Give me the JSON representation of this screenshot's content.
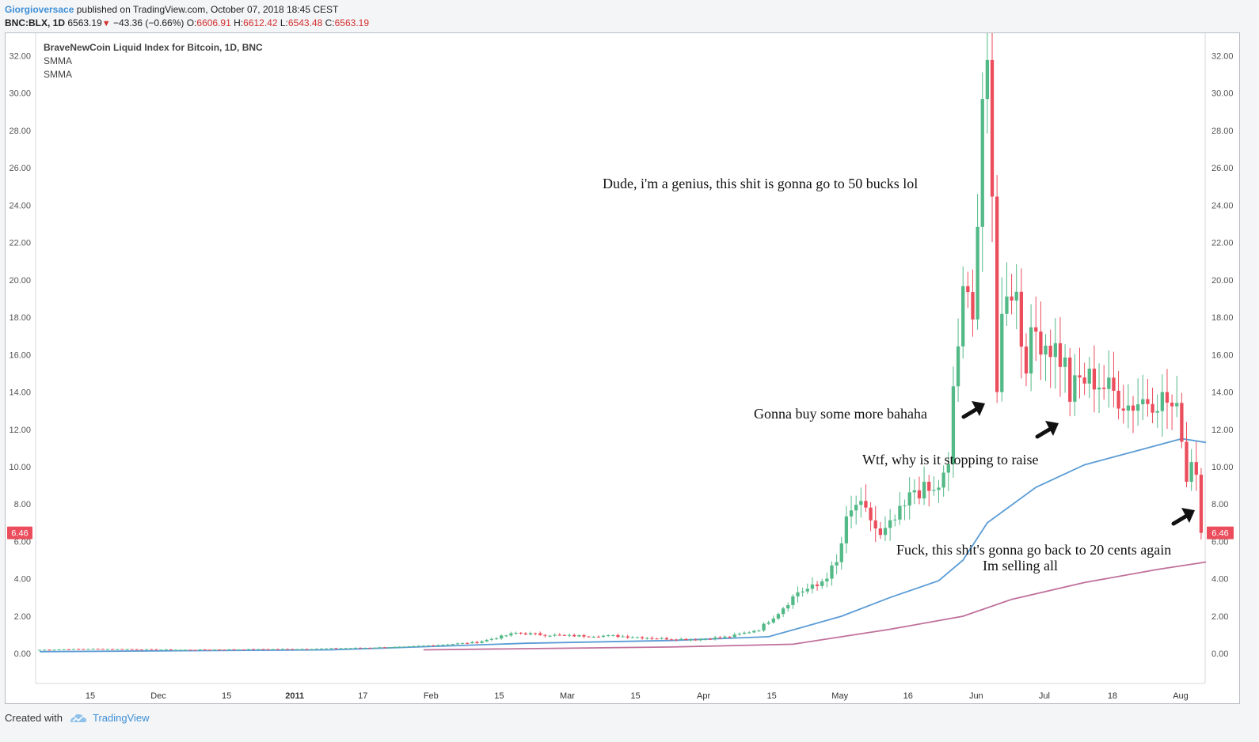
{
  "header": {
    "author": "Giorgioversace",
    "published": "published on TradingView.com, October 07, 2018 18:45 CEST",
    "symbol": "BNC:BLX, 1D",
    "last": "6563.19",
    "change": "−43.36 (−0.66%)",
    "o_label": "O:",
    "o_value": "6606.91",
    "h_label": "H:",
    "h_value": "6612.42",
    "l_label": "L:",
    "l_value": "6543.48",
    "c_label": "C:",
    "c_value": "6563.19"
  },
  "legend": {
    "title": "BraveNewCoin Liquid Index for Bitcoin, 1D, BNC",
    "ind1": "SMMA",
    "ind2": "SMMA"
  },
  "footer": {
    "created": "Created with",
    "brand": "TradingView"
  },
  "colors": {
    "up": "#53b987",
    "down": "#eb4d5c",
    "smma_fast": "#5b9cd6",
    "smma_slow": "#c0709b",
    "price_tag": "#eb4d5c"
  },
  "chart_data": {
    "type": "candlestick",
    "title": "BraveNewCoin Liquid Index for Bitcoin, 1D, BNC",
    "ylim": [
      -1.6,
      33.2
    ],
    "y_ticks": [
      "0.00",
      "2.00",
      "4.00",
      "6.00",
      "8.00",
      "10.00",
      "12.00",
      "14.00",
      "16.00",
      "18.00",
      "20.00",
      "22.00",
      "24.00",
      "26.00",
      "28.00",
      "30.00",
      "32.00"
    ],
    "x_ticks": [
      {
        "label": "15",
        "bold": false
      },
      {
        "label": "Dec",
        "bold": false
      },
      {
        "label": "15",
        "bold": false
      },
      {
        "label": "2011",
        "bold": true
      },
      {
        "label": "17",
        "bold": false
      },
      {
        "label": "Feb",
        "bold": false
      },
      {
        "label": "15",
        "bold": false
      },
      {
        "label": "Mar",
        "bold": false
      },
      {
        "label": "15",
        "bold": false
      },
      {
        "label": "Apr",
        "bold": false
      },
      {
        "label": "15",
        "bold": false
      },
      {
        "label": "May",
        "bold": false
      },
      {
        "label": "16",
        "bold": false
      },
      {
        "label": "Jun",
        "bold": false
      },
      {
        "label": "Jul",
        "bold": false
      },
      {
        "label": "18",
        "bold": false
      },
      {
        "label": "Aug",
        "bold": false
      }
    ],
    "last_price": "6.46",
    "series": [
      {
        "name": "Price",
        "kind": "candles",
        "anchors": [
          [
            0,
            0.2
          ],
          [
            10,
            0.25
          ],
          [
            30,
            0.2
          ],
          [
            55,
            0.25
          ],
          [
            75,
            0.35
          ],
          [
            90,
            0.6
          ],
          [
            98,
            1.1
          ],
          [
            108,
            0.95
          ],
          [
            118,
            0.95
          ],
          [
            128,
            0.8
          ],
          [
            135,
            0.75
          ],
          [
            142,
            0.9
          ],
          [
            148,
            1.3
          ],
          [
            152,
            2.2
          ],
          [
            156,
            3.3
          ],
          [
            160,
            3.6
          ],
          [
            164,
            4.8
          ],
          [
            166,
            7.0
          ],
          [
            168,
            8.0
          ],
          [
            171,
            7.2
          ],
          [
            173,
            6.2
          ],
          [
            175,
            6.8
          ],
          [
            178,
            7.8
          ],
          [
            180,
            8.8
          ],
          [
            184,
            8.6
          ],
          [
            187,
            9.8
          ],
          [
            188,
            14.3
          ],
          [
            190,
            18.8
          ],
          [
            192,
            18.9
          ],
          [
            193,
            23.2
          ],
          [
            194,
            29.8
          ],
          [
            195,
            30.0
          ],
          [
            196,
            24.0
          ],
          [
            197,
            14.6
          ],
          [
            198,
            17.8
          ],
          [
            199,
            19.9
          ],
          [
            201,
            19.3
          ],
          [
            202,
            16.8
          ],
          [
            203,
            15.9
          ],
          [
            205,
            17.2
          ],
          [
            207,
            16.7
          ],
          [
            209,
            16.3
          ],
          [
            211,
            15.4
          ],
          [
            212,
            13.8
          ],
          [
            214,
            14.6
          ],
          [
            217,
            14.7
          ],
          [
            220,
            14.1
          ],
          [
            222,
            13.8
          ],
          [
            224,
            13.3
          ],
          [
            227,
            13.6
          ],
          [
            230,
            13.7
          ],
          [
            232,
            13.5
          ],
          [
            234,
            12.8
          ],
          [
            235,
            11.9
          ],
          [
            236,
            9.3
          ],
          [
            237,
            10.6
          ],
          [
            238,
            9.7
          ],
          [
            239,
            6.46
          ]
        ]
      },
      {
        "name": "SMMA",
        "kind": "line",
        "points": [
          [
            0,
            0.1
          ],
          [
            60,
            0.2
          ],
          [
            100,
            0.55
          ],
          [
            130,
            0.7
          ],
          [
            150,
            0.9
          ],
          [
            165,
            2.0
          ],
          [
            175,
            3.0
          ],
          [
            185,
            3.9
          ],
          [
            190,
            5.0
          ],
          [
            195,
            7.0
          ],
          [
            205,
            8.9
          ],
          [
            215,
            10.1
          ],
          [
            225,
            10.8
          ],
          [
            235,
            11.5
          ],
          [
            240,
            11.3
          ]
        ]
      },
      {
        "name": "SMMA",
        "kind": "line",
        "start": 79,
        "points": [
          [
            79,
            0.2
          ],
          [
            130,
            0.35
          ],
          [
            155,
            0.5
          ],
          [
            175,
            1.3
          ],
          [
            190,
            2.0
          ],
          [
            200,
            2.9
          ],
          [
            215,
            3.8
          ],
          [
            230,
            4.5
          ],
          [
            240,
            4.9
          ]
        ]
      }
    ],
    "annotations": [
      "Dude, i'm a genius, this shit is gonna go to 50 bucks lol",
      "Gonna buy some more bahaha",
      "Wtf, why is it stopping to raise",
      "Fuck, this shit's gonna go back to 20 cents again",
      "Im selling all"
    ]
  }
}
